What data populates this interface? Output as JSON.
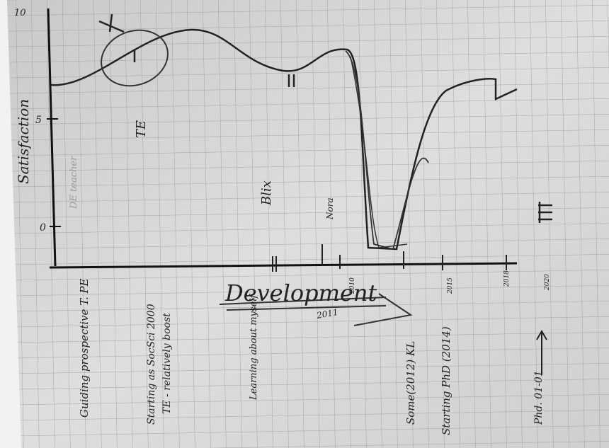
{
  "photo": {
    "axis_label": "Satisfaction",
    "y_ticks": [
      "10",
      "5",
      "0"
    ],
    "annotations": [
      "TE",
      "DE teacher",
      "Blix",
      "Nora",
      "Development",
      "2011"
    ],
    "bottom_labels": [
      "Guiding prospective T. PE",
      "Starting as SocSci 2000",
      "TE - relatively boost",
      "Learning about myself",
      "Some(2012) KL",
      "Starting PhD (2014)",
      "Phd. 01-01"
    ],
    "years": [
      "2010",
      "2015",
      "2018",
      "2020"
    ]
  }
}
